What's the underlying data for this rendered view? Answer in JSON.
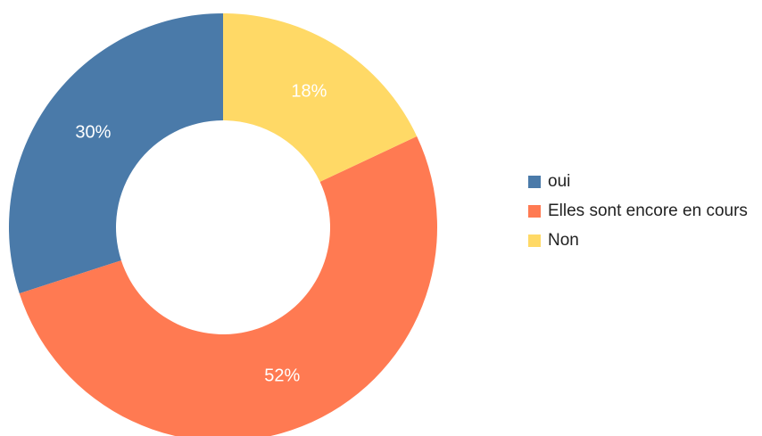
{
  "chart_data": {
    "type": "donut",
    "categories": [
      "oui",
      "Elles sont encore en cours",
      "Non"
    ],
    "values": [
      30,
      52,
      18
    ],
    "value_labels": [
      "30%",
      "52%",
      "18%"
    ],
    "colors": [
      "#4a7aa9",
      "#ff7a52",
      "#ffd966"
    ],
    "legend": "right"
  }
}
